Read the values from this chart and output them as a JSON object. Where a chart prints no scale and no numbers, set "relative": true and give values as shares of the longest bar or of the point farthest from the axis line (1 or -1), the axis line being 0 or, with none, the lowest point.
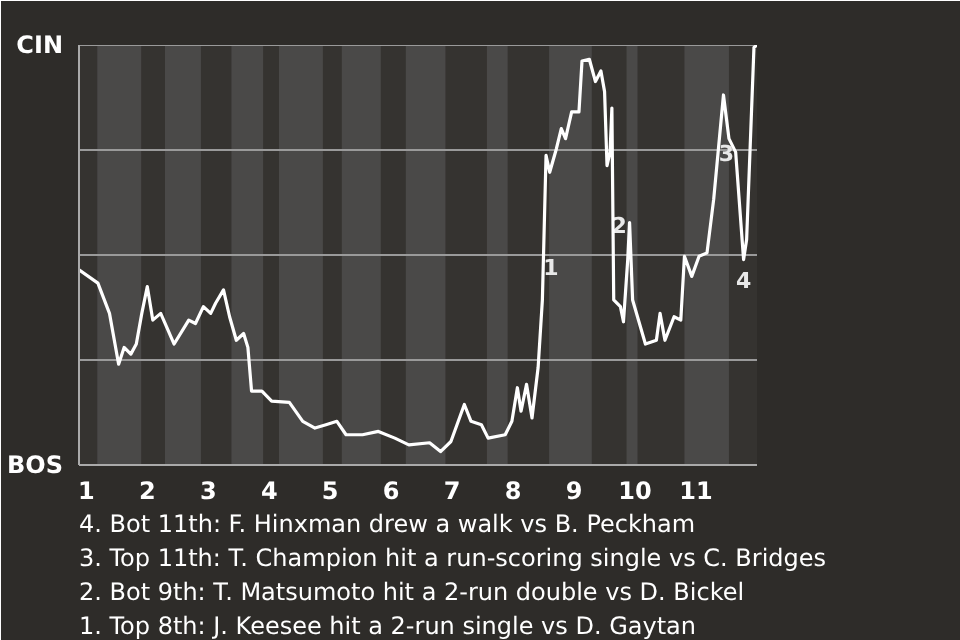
{
  "chart_data": {
    "type": "line",
    "color": "#ffffff",
    "line_style": "solid",
    "marker": "none",
    "relative": true,
    "x": [
      0.88,
      1.19,
      1.38,
      1.53,
      1.62,
      1.73,
      1.82,
      1.91,
      2.0,
      2.09,
      2.22,
      2.44,
      2.68,
      2.79,
      2.92,
      3.04,
      3.12,
      3.25,
      3.35,
      3.46,
      3.58,
      3.65,
      3.71,
      3.88,
      4.04,
      4.33,
      4.55,
      4.75,
      4.93,
      5.11,
      5.26,
      5.53,
      5.79,
      6.06,
      6.29,
      6.63,
      6.81,
      6.98,
      7.2,
      7.31,
      7.48,
      7.59,
      7.87,
      7.98,
      8.07,
      8.13,
      8.22,
      8.31,
      8.41,
      8.48,
      8.54,
      8.6,
      8.71,
      8.79,
      8.86,
      8.96,
      9.08,
      9.13,
      9.25,
      9.35,
      9.44,
      9.5,
      9.54,
      9.59,
      9.62,
      9.65,
      9.76,
      9.81,
      9.88,
      9.91,
      9.96,
      10.17,
      10.35,
      10.41,
      10.49,
      10.64,
      10.75,
      10.81,
      10.93,
      11.05,
      11.18,
      11.29,
      11.45,
      11.54,
      11.65,
      11.78,
      11.83,
      11.95,
      12.0
    ],
    "values": [
      0.465,
      0.433,
      0.361,
      0.24,
      0.28,
      0.264,
      0.288,
      0.361,
      0.425,
      0.345,
      0.361,
      0.288,
      0.345,
      0.337,
      0.377,
      0.361,
      0.385,
      0.417,
      0.353,
      0.297,
      0.313,
      0.28,
      0.176,
      0.176,
      0.152,
      0.149,
      0.104,
      0.088,
      0.096,
      0.104,
      0.072,
      0.072,
      0.08,
      0.064,
      0.048,
      0.053,
      0.032,
      0.056,
      0.144,
      0.104,
      0.096,
      0.064,
      0.072,
      0.104,
      0.184,
      0.128,
      0.192,
      0.112,
      0.232,
      0.393,
      0.737,
      0.697,
      0.753,
      0.801,
      0.777,
      0.841,
      0.841,
      0.962,
      0.966,
      0.913,
      0.938,
      0.889,
      0.713,
      0.745,
      0.85,
      0.393,
      0.377,
      0.341,
      0.489,
      0.577,
      0.393,
      0.288,
      0.297,
      0.361,
      0.297,
      0.353,
      0.345,
      0.497,
      0.449,
      0.497,
      0.505,
      0.633,
      0.881,
      0.777,
      0.745,
      0.489,
      0.537,
      0.994,
      1
    ],
    "xlim": [
      0.88,
      12
    ],
    "xticks": [
      1,
      2,
      3,
      4,
      5,
      6,
      7,
      8,
      9,
      10,
      11
    ],
    "legend": false,
    "ref_lines": [
      {
        "axis": "y",
        "value": 0.25,
        "color": "#9a9a9a"
      },
      {
        "axis": "y",
        "value": 0.5,
        "color": "#9a9a9a"
      },
      {
        "axis": "y",
        "value": 0.75,
        "color": "#9a9a9a"
      },
      {
        "axis": "y",
        "value": 1,
        "color": "#9a9a9a"
      }
    ],
    "bands": [
      {
        "axis": "x",
        "from": 1.18,
        "to": 1.9,
        "color": "#4a4948"
      },
      {
        "axis": "x",
        "from": 2.29,
        "to": 2.88,
        "color": "#4a4948"
      },
      {
        "axis": "x",
        "from": 3.38,
        "to": 3.9,
        "color": "#4a4948"
      },
      {
        "axis": "x",
        "from": 4.16,
        "to": 4.88,
        "color": "#4a4948"
      },
      {
        "axis": "x",
        "from": 5.19,
        "to": 5.83,
        "color": "#4a4948"
      },
      {
        "axis": "x",
        "from": 6.24,
        "to": 6.89,
        "color": "#4a4948"
      },
      {
        "axis": "x",
        "from": 7.57,
        "to": 7.91,
        "color": "#4a4948"
      },
      {
        "axis": "x",
        "from": 8.59,
        "to": 9.29,
        "color": "#4a4948"
      },
      {
        "axis": "x",
        "from": 9.86,
        "to": 10.04,
        "color": "#4a4948"
      },
      {
        "axis": "x",
        "from": 10.81,
        "to": 11.54,
        "color": "#4a4948"
      }
    ],
    "annotations": [
      "CIN",
      "BOS",
      {
        "text": "1",
        "x": 8.62,
        "y": 0.52
      },
      {
        "text": "2",
        "x": 9.74,
        "y": 0.62
      },
      {
        "text": "3",
        "x": 11.5,
        "y": 0.79
      },
      {
        "text": "4",
        "x": 11.78,
        "y": 0.489
      },
      "1. Top 8th: J. Keesee hit a 2-run single vs D. Gaytan",
      "2. Bot 9th: T. Matsumoto hit a 2-run double vs D. Bickel",
      "3. Top 11th: T. Champion hit a run-scoring single vs C. Bridges",
      "4. Bot 11th: F. Hinxman drew a walk vs B. Peckham"
    ]
  }
}
